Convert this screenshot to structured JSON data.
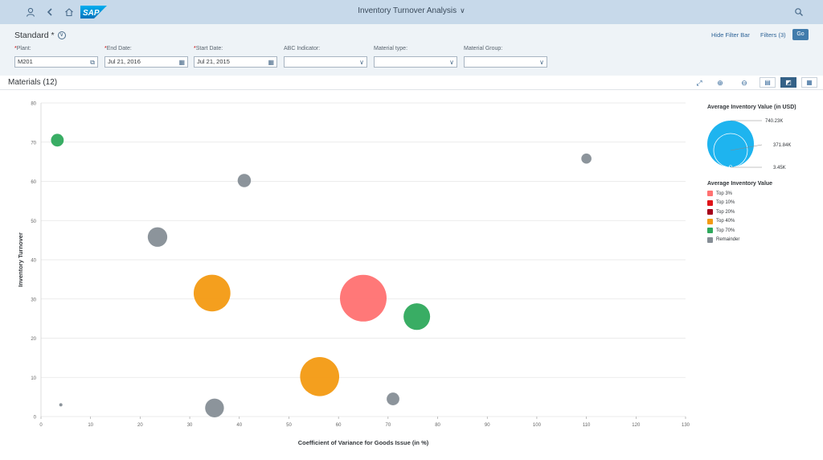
{
  "shell": {
    "title": "Inventory Turnover Analysis",
    "logo_text": "SAP",
    "icons": [
      "user-icon",
      "back-icon",
      "home-icon",
      "search-icon"
    ]
  },
  "filterbar": {
    "variant": "Standard *",
    "hide_filter_bar": "Hide Filter Bar",
    "filters": "Filters (3)",
    "go": "Go",
    "fields": [
      {
        "label": "Plant:",
        "required": true,
        "value": "M201",
        "icon": "value-help-icon"
      },
      {
        "label": "End Date:",
        "required": true,
        "value": "Jul 21, 2016",
        "icon": "calendar-icon"
      },
      {
        "label": "Start Date:",
        "required": true,
        "value": "Jul 21, 2015",
        "icon": "calendar-icon"
      },
      {
        "label": "ABC Indicator:",
        "required": false,
        "value": "",
        "icon": "dropdown-icon"
      },
      {
        "label": "Material type:",
        "required": false,
        "value": "",
        "icon": "dropdown-icon"
      },
      {
        "label": "Material Group:",
        "required": false,
        "value": "",
        "icon": "dropdown-icon"
      }
    ]
  },
  "toolbar": {
    "title": "Materials (12)"
  },
  "chart_data": {
    "type": "scatter",
    "xlabel": "Coefficient of Variance for Goods Issue (in %)",
    "ylabel": "Inventory Turnover",
    "xlim": [
      0,
      130
    ],
    "ylim": [
      0,
      80
    ],
    "xticks": [
      0,
      10,
      20,
      30,
      40,
      50,
      60,
      70,
      80,
      90,
      100,
      110,
      120,
      130
    ],
    "yticks": [
      0,
      10,
      20,
      30,
      40,
      50,
      60,
      70,
      80
    ],
    "grid": true,
    "size_legend": {
      "title": "Average Inventory Value (in USD)",
      "labels": [
        "740.23K",
        "371.84K",
        "3.45K"
      ]
    },
    "color_legend": {
      "title": "Average Inventory Value",
      "entries": [
        {
          "name": "Top 3%",
          "color": "#ff7171"
        },
        {
          "name": "Top 10%",
          "color": "#e0141a"
        },
        {
          "name": "Top 20%",
          "color": "#a6001a"
        },
        {
          "name": "Top 40%",
          "color": "#f39a12"
        },
        {
          "name": "Top 70%",
          "color": "#2ea95c"
        },
        {
          "name": "Remainder",
          "color": "#868e96"
        }
      ]
    },
    "points": [
      {
        "x": 3.3,
        "y": 70.5,
        "category": "Top 70%",
        "value": 55
      },
      {
        "x": 41,
        "y": 60.2,
        "category": "Remainder",
        "value": 60
      },
      {
        "x": 110,
        "y": 65.8,
        "category": "Remainder",
        "value": 35
      },
      {
        "x": 23.5,
        "y": 45.8,
        "category": "Remainder",
        "value": 130
      },
      {
        "x": 34.5,
        "y": 31.5,
        "category": "Top 40%",
        "value": 460
      },
      {
        "x": 65,
        "y": 30.2,
        "category": "Top 3%",
        "value": 740
      },
      {
        "x": 75.8,
        "y": 25.5,
        "category": "Top 70%",
        "value": 240
      },
      {
        "x": 56.2,
        "y": 10.2,
        "category": "Top 40%",
        "value": 520
      },
      {
        "x": 71,
        "y": 4.5,
        "category": "Remainder",
        "value": 55
      },
      {
        "x": 35,
        "y": 2.2,
        "category": "Remainder",
        "value": 120
      },
      {
        "x": 4,
        "y": 3,
        "category": "Remainder",
        "value": 3.45
      }
    ]
  }
}
